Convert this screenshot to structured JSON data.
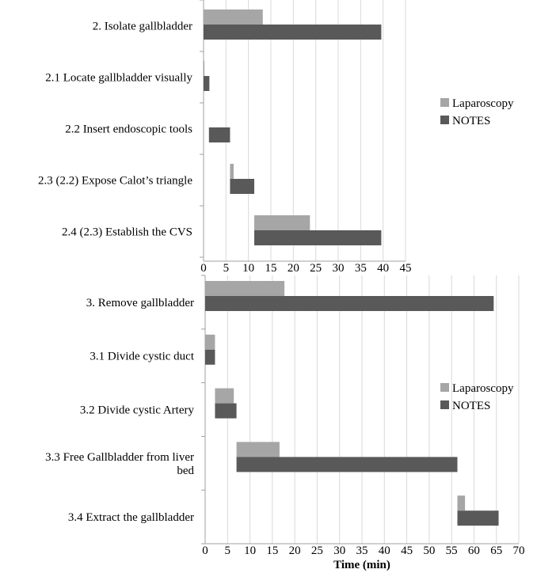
{
  "colors": {
    "laparoscopy": "#a6a6a6",
    "notes": "#595959",
    "grid": "#d9d9d9",
    "axis": "#a0a0a0"
  },
  "chart_data": [
    {
      "type": "bar",
      "orientation": "horizontal",
      "stacked_as": "floating (gantt)",
      "categories": [
        "2. Isolate gallbladder",
        "2.1 Locate gallbladder visually",
        "2.2 Insert endoscopic tools",
        "2.3 (2.2) Expose Calot’s triangle",
        "2.4 (2.3) Establish the CVS"
      ],
      "series": [
        {
          "name": "Laparoscopy",
          "start": [
            0,
            0,
            null,
            5.9,
            11.3
          ],
          "end": [
            13.2,
            0.2,
            null,
            6.7,
            23.7
          ]
        },
        {
          "name": "NOTES",
          "start": [
            0,
            0,
            1.2,
            5.9,
            11.3
          ],
          "end": [
            39.6,
            1.3,
            5.9,
            11.3,
            39.6
          ]
        }
      ],
      "xlim": [
        0,
        45
      ],
      "xticks": [
        "0",
        "5",
        "10",
        "15",
        "20",
        "25",
        "30",
        "35",
        "40",
        "45"
      ],
      "grid": true,
      "legend": "right"
    },
    {
      "type": "bar",
      "orientation": "horizontal",
      "stacked_as": "floating (gantt)",
      "categories": [
        "3. Remove gallbladder",
        "3.1 Divide cystic duct",
        "3.2 Divide cystic Artery",
        "3.3 Free Gallbladder from liver bed",
        "3.4 Extract the gallbladder"
      ],
      "category_lines": [
        [
          "3. Remove gallbladder"
        ],
        [
          "3.1 Divide cystic duct"
        ],
        [
          "3.2 Divide cystic Artery"
        ],
        [
          "3.3 Free Gallbladder from liver",
          "bed"
        ],
        [
          "3.4 Extract the gallbladder"
        ]
      ],
      "series": [
        {
          "name": "Laparoscopy",
          "start": [
            0,
            0,
            2.2,
            7.0,
            56.3
          ],
          "end": [
            17.7,
            2.2,
            6.4,
            16.6,
            58.0
          ]
        },
        {
          "name": "NOTES",
          "start": [
            0,
            0,
            2.2,
            7.0,
            56.3
          ],
          "end": [
            64.4,
            2.2,
            7.0,
            56.3,
            65.5
          ]
        }
      ],
      "xlim": [
        0,
        70
      ],
      "xticks": [
        "0",
        "5",
        "10",
        "15",
        "20",
        "25",
        "30",
        "35",
        "40",
        "45",
        "50",
        "55",
        "60",
        "65",
        "70"
      ],
      "xlabel": "Time (min)",
      "grid": true,
      "legend": "right"
    }
  ]
}
